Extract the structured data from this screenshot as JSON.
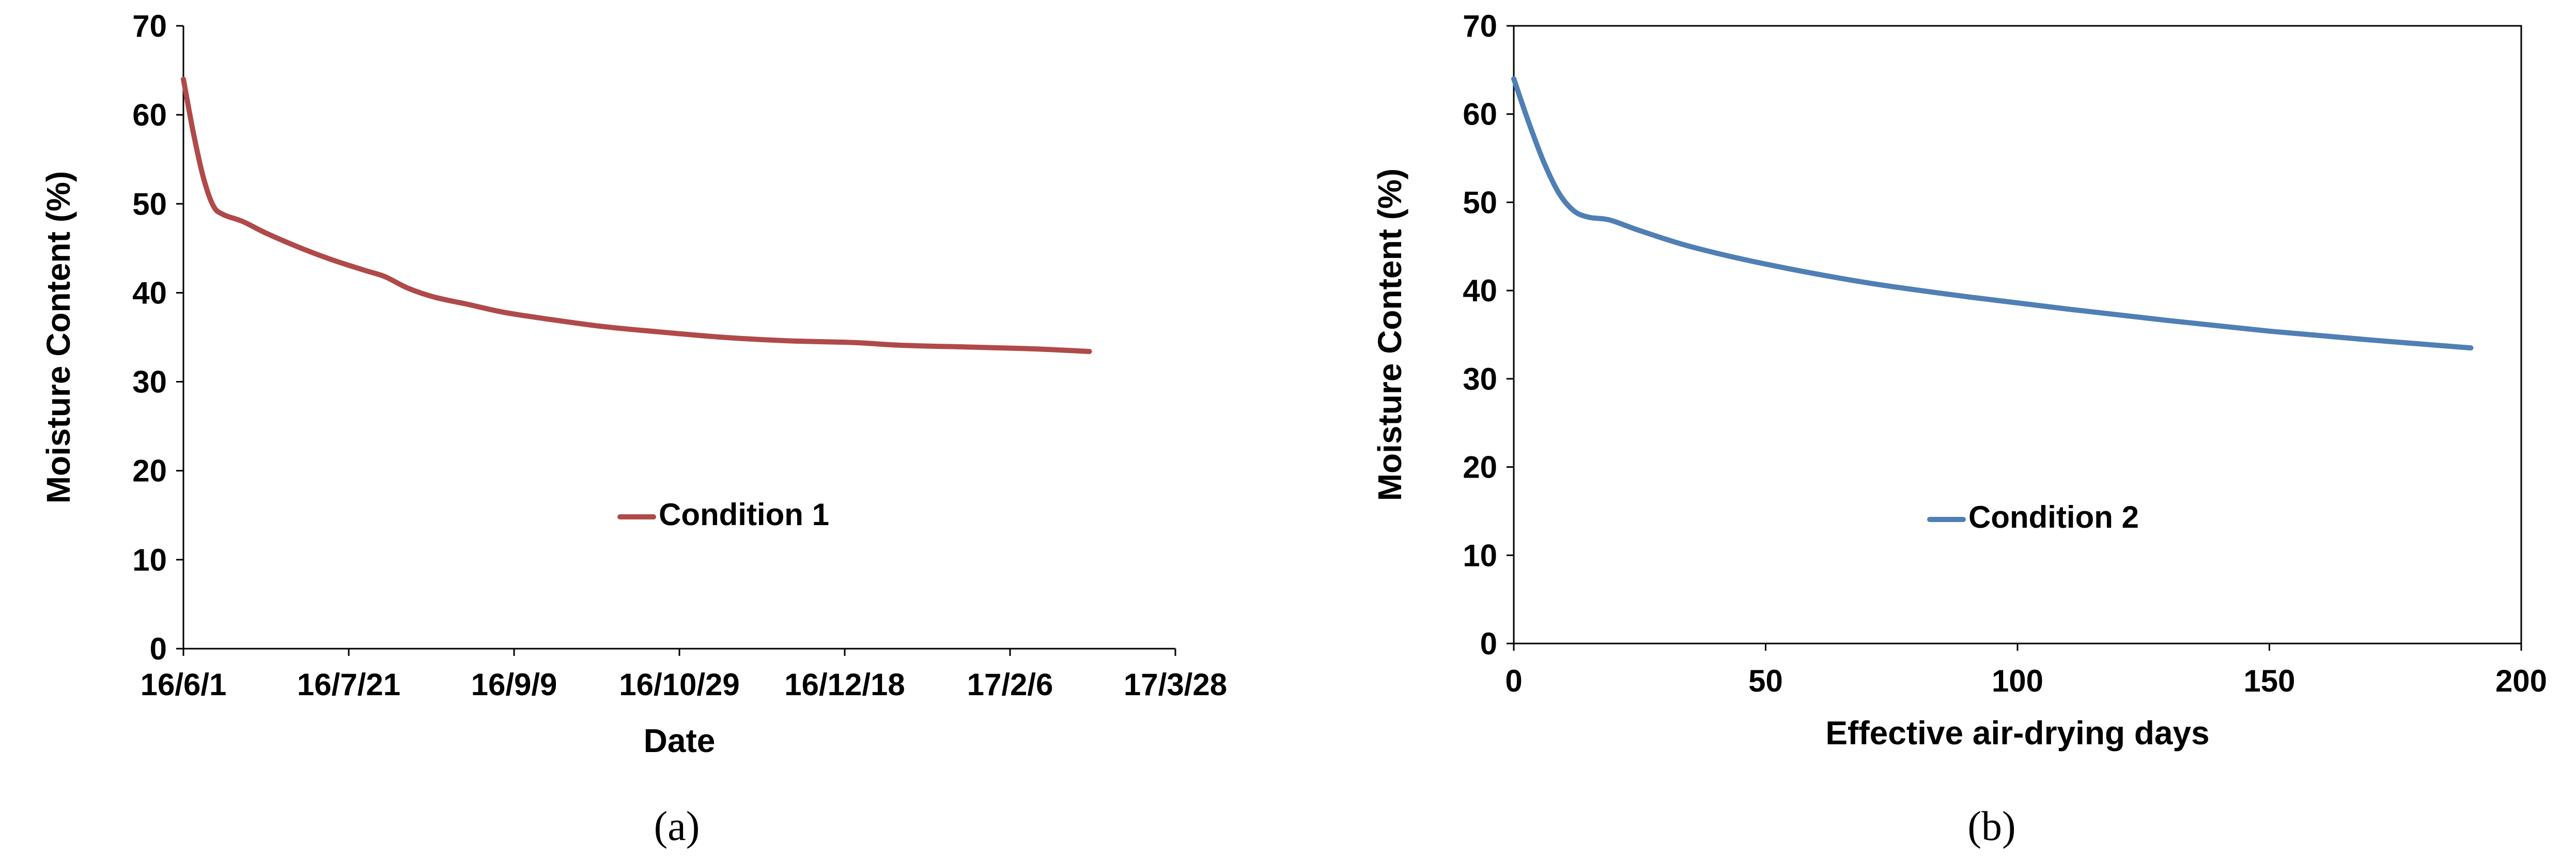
{
  "colors": {
    "condition1": "#b04a4a",
    "condition2": "#4f7fb5"
  },
  "chart_data": [
    {
      "type": "line",
      "panel_label": "(a)",
      "xlabel": "Date",
      "ylabel": "Moisture Content (%)",
      "x_is_date": true,
      "x_tick_labels": [
        "16/6/1",
        "16/7/21",
        "16/9/9",
        "16/10/29",
        "16/12/18",
        "17/2/6",
        "17/3/28"
      ],
      "xlim": [
        "2016-06-01",
        "2017-03-28"
      ],
      "ylim": [
        0,
        70
      ],
      "y_ticks": [
        0,
        10,
        20,
        30,
        40,
        50,
        60,
        70
      ],
      "grid": false,
      "legend_position": "center",
      "series": [
        {
          "name": "Condition 1",
          "color": "#b04a4a",
          "points": [
            [
              "2016-06-01",
              64.0
            ],
            [
              "2016-06-04",
              58.0
            ],
            [
              "2016-06-07",
              53.0
            ],
            [
              "2016-06-10",
              49.8
            ],
            [
              "2016-06-13",
              48.8
            ],
            [
              "2016-06-19",
              48.0
            ],
            [
              "2016-06-26",
              46.7
            ],
            [
              "2016-07-06",
              45.1
            ],
            [
              "2016-07-16",
              43.7
            ],
            [
              "2016-07-26",
              42.5
            ],
            [
              "2016-08-01",
              41.8
            ],
            [
              "2016-08-08",
              40.5
            ],
            [
              "2016-08-16",
              39.5
            ],
            [
              "2016-08-26",
              38.7
            ],
            [
              "2016-09-06",
              37.8
            ],
            [
              "2016-09-20",
              37.0
            ],
            [
              "2016-10-06",
              36.2
            ],
            [
              "2016-10-23",
              35.6
            ],
            [
              "2016-11-11",
              35.0
            ],
            [
              "2016-12-01",
              34.6
            ],
            [
              "2016-12-21",
              34.4
            ],
            [
              "2017-01-04",
              34.1
            ],
            [
              "2017-01-24",
              33.9
            ],
            [
              "2017-02-13",
              33.7
            ],
            [
              "2017-03-02",
              33.4
            ]
          ]
        }
      ]
    },
    {
      "type": "line",
      "panel_label": "(b)",
      "xlabel": "Effective air-drying days",
      "ylabel": "Moisture Content (%)",
      "x_ticks": [
        0,
        50,
        100,
        150,
        200
      ],
      "xlim": [
        0,
        200
      ],
      "ylim": [
        0,
        70
      ],
      "y_ticks": [
        0,
        10,
        20,
        30,
        40,
        50,
        60,
        70
      ],
      "grid": false,
      "legend_position": "center",
      "series": [
        {
          "name": "Condition 2",
          "color": "#4f7fb5",
          "points": [
            [
              0,
              64.0
            ],
            [
              3,
              59.0
            ],
            [
              6,
              54.5
            ],
            [
              9,
              51.0
            ],
            [
              12,
              49.0
            ],
            [
              15,
              48.3
            ],
            [
              19,
              48.0
            ],
            [
              25,
              46.8
            ],
            [
              35,
              45.0
            ],
            [
              50,
              43.0
            ],
            [
              70,
              40.9
            ],
            [
              90,
              39.3
            ],
            [
              110,
              37.9
            ],
            [
              130,
              36.6
            ],
            [
              150,
              35.4
            ],
            [
              170,
              34.4
            ],
            [
              190,
              33.5
            ]
          ]
        }
      ]
    }
  ]
}
